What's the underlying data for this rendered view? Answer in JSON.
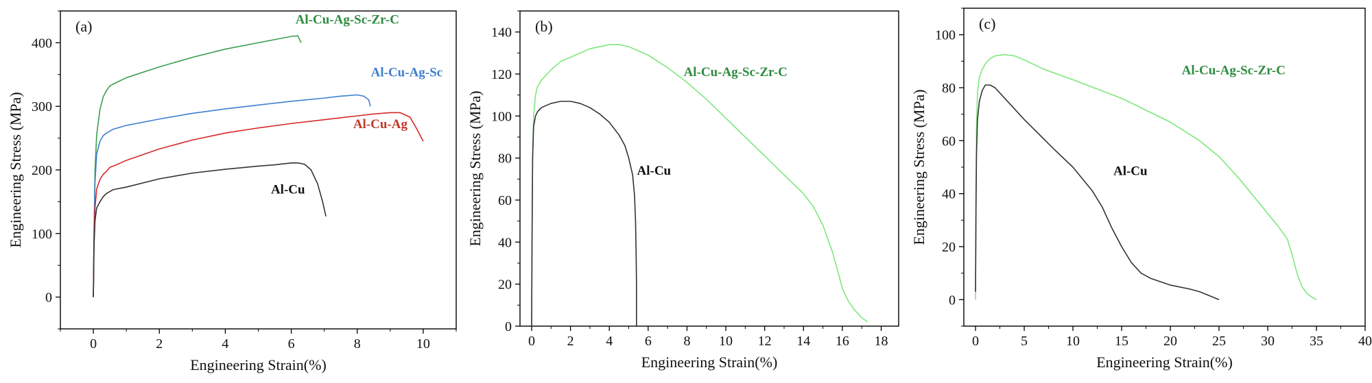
{
  "chart_data": [
    {
      "type": "line",
      "panel_label": "(a)",
      "xlabel": "Engineering Strain(%)",
      "ylabel": "Engineering Stress (MPa)",
      "xlim": [
        -1,
        11
      ],
      "ylim": [
        -50,
        450
      ],
      "xticks": [
        0,
        2,
        4,
        6,
        8,
        10
      ],
      "yticks": [
        0,
        100,
        200,
        300,
        400
      ],
      "grid": false,
      "legend": "inline labels",
      "series": [
        {
          "name": "Al-Cu-Ag-Sc-Zr-C",
          "color": "#3a9e4e",
          "label_color": "#2e8b3e",
          "label_at": [
            7.7,
            430
          ],
          "x": [
            0,
            0.02,
            0.05,
            0.1,
            0.2,
            0.3,
            0.4,
            0.5,
            0.6,
            1,
            2,
            3,
            4,
            5,
            5.5,
            6,
            6.2,
            6.25,
            6.3
          ],
          "y": [
            0,
            100,
            200,
            255,
            295,
            315,
            325,
            332,
            335,
            345,
            362,
            377,
            390,
            400,
            405,
            410,
            411,
            405,
            400
          ]
        },
        {
          "name": "Al-Cu-Ag-Sc",
          "color": "#3d7fcf",
          "label_color": "#3d7fcf",
          "label_at": [
            9.5,
            347
          ],
          "x": [
            0,
            0.02,
            0.05,
            0.1,
            0.2,
            0.3,
            0.4,
            0.5,
            0.6,
            1,
            2,
            3,
            4,
            5,
            6,
            7,
            7.5,
            8,
            8.2,
            8.35,
            8.4
          ],
          "y": [
            0,
            100,
            180,
            225,
            245,
            254,
            258,
            261,
            264,
            270,
            280,
            289,
            296,
            302,
            308,
            313,
            316,
            318,
            316,
            310,
            300
          ]
        },
        {
          "name": "Al-Cu-Ag",
          "color": "#d62728",
          "label_color": "#c0392b",
          "label_at": [
            8.7,
            266
          ],
          "x": [
            0,
            0.02,
            0.05,
            0.1,
            0.2,
            0.3,
            0.4,
            0.5,
            0.7,
            1,
            2,
            3,
            4,
            5,
            6,
            7,
            8,
            8.5,
            9,
            9.3,
            9.6,
            9.8,
            10
          ],
          "y": [
            0,
            90,
            140,
            170,
            185,
            193,
            198,
            204,
            208,
            215,
            233,
            247,
            258,
            266,
            273,
            279,
            285,
            288,
            290,
            290,
            283,
            265,
            245
          ]
        },
        {
          "name": "Al-Cu",
          "color": "#333333",
          "label_color": "#111111",
          "label_at": [
            5.9,
            163
          ],
          "x": [
            0,
            0.02,
            0.05,
            0.1,
            0.2,
            0.3,
            0.4,
            0.5,
            0.6,
            1,
            2,
            3,
            4,
            5,
            5.5,
            6,
            6.2,
            6.4,
            6.6,
            6.8,
            6.95,
            7.05
          ],
          "y": [
            0,
            80,
            120,
            140,
            150,
            158,
            163,
            166,
            169,
            173,
            186,
            195,
            201,
            206,
            208,
            211,
            211,
            209,
            200,
            178,
            150,
            127
          ]
        }
      ]
    },
    {
      "type": "line",
      "panel_label": "(b)",
      "xlabel": "Engineering Strain(%)",
      "ylabel": "Engineering Stress (MPa)",
      "xlim": [
        -0.6,
        18.9
      ],
      "ylim": [
        0,
        150
      ],
      "xticks": [
        0,
        2,
        4,
        6,
        8,
        10,
        12,
        14,
        16,
        18
      ],
      "yticks": [
        0,
        20,
        40,
        60,
        80,
        100,
        120,
        140
      ],
      "grid": false,
      "legend": "inline labels",
      "series": [
        {
          "name": "Al-Cu-Ag-Sc-Zr-C",
          "color": "#7de87d",
          "label_color": "#2e8b3e",
          "label_at": [
            10.5,
            119
          ],
          "x": [
            0,
            0.02,
            0.05,
            0.1,
            0.2,
            0.3,
            0.5,
            0.8,
            1,
            1.5,
            2,
            3,
            4,
            4.5,
            5,
            6,
            7,
            8,
            9,
            10,
            11,
            12,
            13,
            14,
            14.5,
            15,
            15.5,
            15.8,
            16,
            16.3,
            16.6,
            17,
            17.3
          ],
          "y": [
            0,
            40,
            80,
            100,
            110,
            114,
            117,
            120,
            122,
            126,
            128,
            132,
            134,
            134,
            133,
            129,
            123,
            116,
            108,
            99,
            90,
            81,
            72,
            63,
            57,
            48,
            35,
            25,
            18,
            12,
            8,
            4,
            2
          ]
        },
        {
          "name": "Al-Cu",
          "color": "#333333",
          "label_color": "#111111",
          "label_at": [
            6.3,
            72
          ],
          "x": [
            0,
            0.02,
            0.05,
            0.1,
            0.2,
            0.3,
            0.5,
            1,
            1.5,
            2,
            2.5,
            3,
            3.5,
            4,
            4.5,
            4.8,
            5,
            5.2,
            5.3,
            5.35,
            5.38,
            5.4,
            5.4,
            5.4
          ],
          "y": [
            0,
            40,
            80,
            95,
            100,
            102,
            104,
            106,
            107,
            107,
            106,
            104,
            101,
            97,
            91,
            86,
            80,
            72,
            62,
            50,
            35,
            20,
            10,
            0
          ]
        }
      ]
    },
    {
      "type": "line",
      "panel_label": "(c)",
      "xlabel": "Engineering Strain(%)",
      "ylabel": "Engineering Stress (MPa)",
      "xlim": [
        -1.2,
        40
      ],
      "ylim": [
        -10,
        110
      ],
      "xticks": [
        0,
        5,
        10,
        15,
        20,
        25,
        30,
        35,
        40
      ],
      "yticks": [
        0,
        20,
        40,
        60,
        80,
        100
      ],
      "grid": false,
      "legend": "inline labels",
      "series": [
        {
          "name": "Al-Cu-Ag-Sc-Zr-C",
          "color": "#7de87d",
          "label_color": "#2e8b3e",
          "label_at": [
            26.5,
            85
          ],
          "x": [
            0,
            0.05,
            0.1,
            0.2,
            0.4,
            0.7,
            1,
            1.5,
            2,
            3,
            4,
            5,
            7,
            10,
            15,
            20,
            23,
            25,
            27,
            29,
            31,
            32,
            32.5,
            33,
            33.5,
            34,
            34.5,
            35
          ],
          "y": [
            0,
            40,
            65,
            78,
            84,
            87,
            89,
            91,
            92,
            92.5,
            92,
            90.5,
            87,
            83,
            76,
            67,
            60,
            54,
            46,
            37,
            28,
            23,
            17,
            10,
            5,
            2.5,
            1,
            0
          ]
        },
        {
          "name": "Al-Cu",
          "color": "#333333",
          "label_color": "#111111",
          "label_at": [
            15.9,
            47
          ],
          "x": [
            0,
            0.05,
            0.1,
            0.2,
            0.4,
            0.7,
            1,
            1.5,
            2,
            3,
            5,
            8,
            10,
            12,
            13,
            14,
            15,
            16,
            17,
            18,
            20,
            22,
            23,
            24,
            25
          ],
          "y": [
            3,
            35,
            55,
            68,
            75,
            79,
            81,
            81,
            80,
            76,
            68,
            57,
            50,
            41,
            35,
            27,
            20,
            14,
            10,
            8,
            5.5,
            4,
            3,
            1.5,
            0
          ]
        }
      ]
    }
  ]
}
